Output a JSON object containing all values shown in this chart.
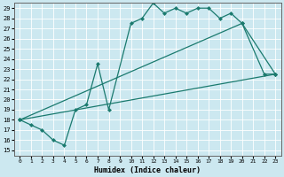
{
  "xlabel": "Humidex (Indice chaleur)",
  "background_color": "#cce8f0",
  "line_color": "#1a7a6e",
  "xlim": [
    -0.5,
    23.5
  ],
  "ylim": [
    14.5,
    29.5
  ],
  "xticks": [
    0,
    1,
    2,
    3,
    4,
    5,
    6,
    7,
    8,
    9,
    10,
    11,
    12,
    13,
    14,
    15,
    16,
    17,
    18,
    19,
    20,
    21,
    22,
    23
  ],
  "yticks": [
    15,
    16,
    17,
    18,
    19,
    20,
    21,
    22,
    23,
    24,
    25,
    26,
    27,
    28,
    29
  ],
  "series": [
    {
      "x": [
        0,
        1,
        2,
        3,
        4,
        5,
        6,
        7,
        8,
        10,
        11,
        12,
        13,
        14,
        15,
        16,
        17,
        18,
        19,
        20,
        22,
        23
      ],
      "y": [
        18,
        17.5,
        17,
        16,
        15.5,
        19,
        19.5,
        23.5,
        19,
        27.5,
        28,
        29.5,
        28.5,
        29,
        28.5,
        29,
        29,
        28,
        28.5,
        27.5,
        22.5,
        22.5
      ]
    },
    {
      "x": [
        0,
        23
      ],
      "y": [
        18,
        22.5
      ]
    },
    {
      "x": [
        0,
        20,
        23
      ],
      "y": [
        18,
        27.5,
        22.5
      ]
    }
  ]
}
